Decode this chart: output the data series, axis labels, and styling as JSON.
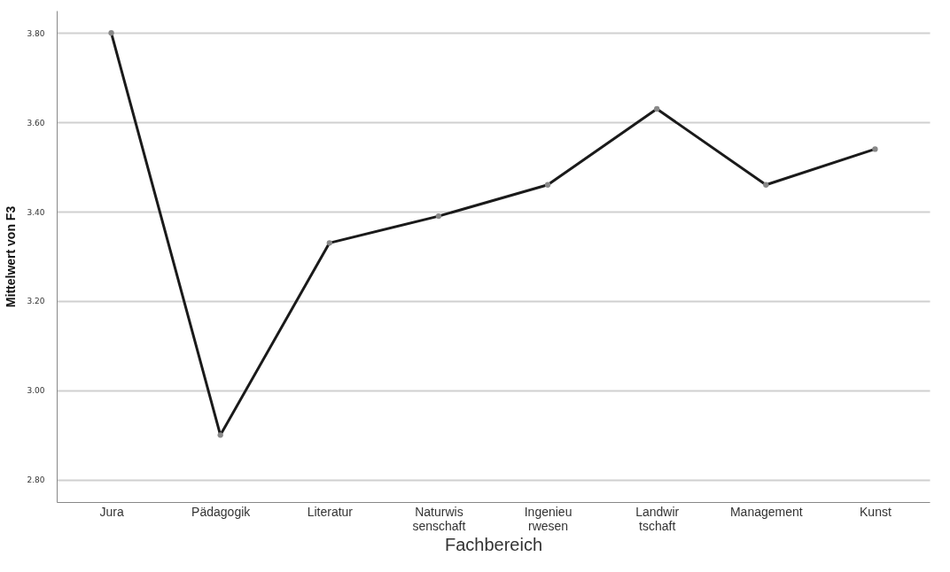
{
  "chart_data": {
    "type": "line",
    "xlabel": "Fachbereich",
    "ylabel": "Mittelwert von F3",
    "categories": [
      "Jura",
      "Pädagogik",
      "Literatur",
      "Naturwis\nsenschaft",
      "Ingenieu\nrwesen",
      "Landwir\ntschaft",
      "Management",
      "Kunst"
    ],
    "series": [
      {
        "color": "#1a1a1a",
        "values": [
          3.8,
          2.9,
          3.33,
          3.39,
          3.46,
          3.63,
          3.46,
          3.54
        ]
      }
    ],
    "ylim": [
      2.75,
      3.85
    ],
    "yticks": [
      {
        "value": 2.8,
        "label": "2.80"
      },
      {
        "value": 3.0,
        "label": "3.00"
      },
      {
        "value": 3.2,
        "label": "3.20"
      },
      {
        "value": 3.4,
        "label": "3.40"
      },
      {
        "value": 3.6,
        "label": "3.60"
      },
      {
        "value": 3.8,
        "label": "3.80"
      }
    ],
    "grid": "y",
    "marker": "circle",
    "line_style": "solid"
  }
}
